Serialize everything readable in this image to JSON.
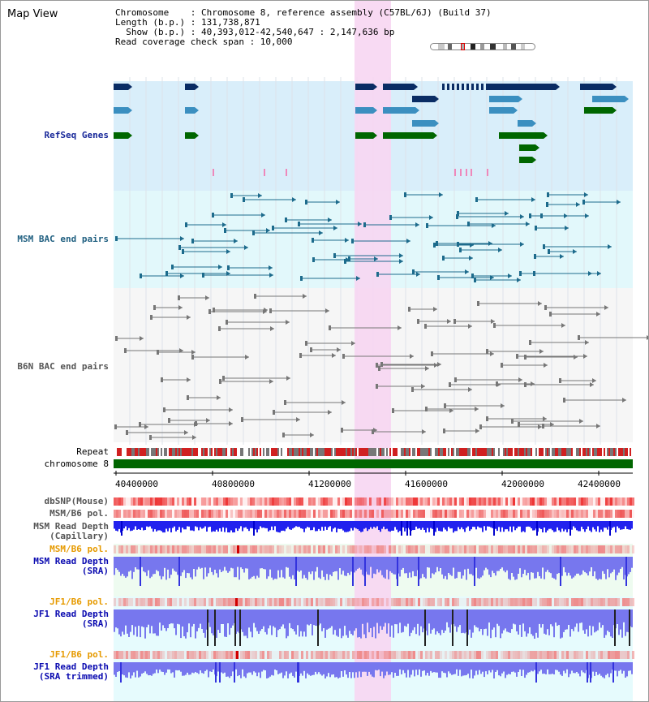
{
  "view_title": "Map View",
  "info": {
    "line1": "Chromosome    : Chromosome 8, reference assembly (C57BL/6J) (Build 37)",
    "line2": "Length (b.p.) : 131,738,871",
    "line3": "  Show (b.p.) : 40,393,012-42,540,647 : 2,147,636 bp",
    "line4": "Read coverage check span : 10,000"
  },
  "tracks": {
    "refseq": "RefSeq Genes",
    "msm_bac": "MSM BAC end pairs",
    "b6n_bac": "B6N BAC end pairs",
    "repeat": "Repeat",
    "chromosome": "chromosome 8",
    "dbsnp": "dbSNP(Mouse)",
    "msm_b6_pol_1": "MSM/B6 pol.",
    "msm_depth_cap": "MSM Read Depth\n(Capillary)",
    "msm_b6_pol_2": "MSM/B6 pol.",
    "msm_depth_sra": "MSM Read Depth\n(SRA)",
    "jf1_b6_pol_1": "JF1/B6 pol.",
    "jf1_depth_sra": "JF1 Read Depth\n(SRA)",
    "jf1_b6_pol_2": "JF1/B6 pol.",
    "jf1_depth_trim": "JF1 Read Depth\n(SRA trimmed)"
  },
  "axis": {
    "ticks": [
      "40400000",
      "40800000",
      "41200000",
      "41600000",
      "42000000",
      "42400000"
    ]
  },
  "colors": {
    "refseq_bg": "#d9eefa",
    "bac_bg": "#e2f8fb",
    "highlight": "#f7d6f2",
    "gene_dark": "#0a2c64",
    "gene_mid": "#3b8fc0",
    "gene_green": "#006600",
    "chrom": "#006600"
  }
}
